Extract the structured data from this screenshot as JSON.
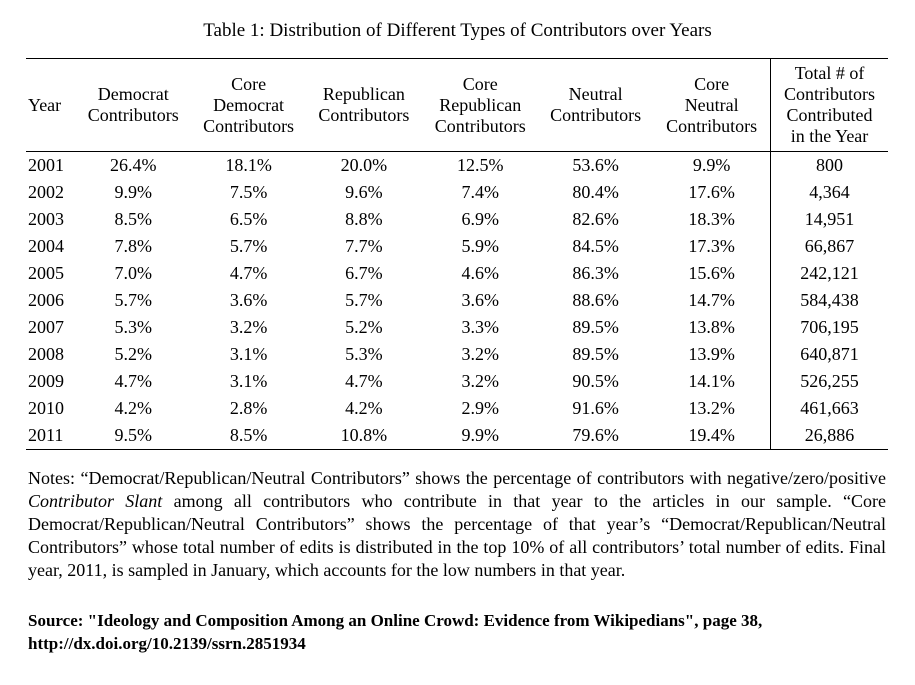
{
  "caption": "Table 1: Distribution of Different Types of Contributors over Years",
  "headers": {
    "year": "Year",
    "democrat": [
      "Democrat",
      "Contributors"
    ],
    "core_democrat": [
      "Core",
      "Democrat",
      "Contributors"
    ],
    "republican": [
      "Republican",
      "Contributors"
    ],
    "core_republican": [
      "Core",
      "Republican",
      "Contributors"
    ],
    "neutral": [
      "Neutral",
      "Contributors"
    ],
    "core_neutral": [
      "Core",
      "Neutral",
      "Contributors"
    ],
    "total": [
      "Total # of",
      "Contributors",
      "Contributed",
      "in the Year"
    ]
  },
  "rows": [
    [
      "2001",
      "26.4%",
      "18.1%",
      "20.0%",
      "12.5%",
      "53.6%",
      "9.9%",
      "800"
    ],
    [
      "2002",
      "9.9%",
      "7.5%",
      "9.6%",
      "7.4%",
      "80.4%",
      "17.6%",
      "4,364"
    ],
    [
      "2003",
      "8.5%",
      "6.5%",
      "8.8%",
      "6.9%",
      "82.6%",
      "18.3%",
      "14,951"
    ],
    [
      "2004",
      "7.8%",
      "5.7%",
      "7.7%",
      "5.9%",
      "84.5%",
      "17.3%",
      "66,867"
    ],
    [
      "2005",
      "7.0%",
      "4.7%",
      "6.7%",
      "4.6%",
      "86.3%",
      "15.6%",
      "242,121"
    ],
    [
      "2006",
      "5.7%",
      "3.6%",
      "5.7%",
      "3.6%",
      "88.6%",
      "14.7%",
      "584,438"
    ],
    [
      "2007",
      "5.3%",
      "3.2%",
      "5.2%",
      "3.3%",
      "89.5%",
      "13.8%",
      "706,195"
    ],
    [
      "2008",
      "5.2%",
      "3.1%",
      "5.3%",
      "3.2%",
      "89.5%",
      "13.9%",
      "640,871"
    ],
    [
      "2009",
      "4.7%",
      "3.1%",
      "4.7%",
      "3.2%",
      "90.5%",
      "14.1%",
      "526,255"
    ],
    [
      "2010",
      "4.2%",
      "2.8%",
      "4.2%",
      "2.9%",
      "91.6%",
      "13.2%",
      "461,663"
    ],
    [
      "2011",
      "9.5%",
      "8.5%",
      "10.8%",
      "9.9%",
      "79.6%",
      "19.4%",
      "26,886"
    ]
  ],
  "notes": {
    "part1": "Notes: “Democrat/Republican/Neutral Contributors” shows the percentage of contributors with negative/zero/positive ",
    "italic": "Contributor Slant",
    "part2": " among all contributors who contribute in that year to the articles in our sample. “Core Democrat/Republican/Neutral Contributors” shows the percentage of that year’s “Democrat/Republican/Neutral Contributors” whose total number of edits is distributed in the top 10% of all contributors’ total number of edits. Final year, 2011, is sampled in January, which accounts for the low numbers in that year."
  },
  "source": "Source: \"Ideology and Composition Among an Online Crowd: Evidence from Wikipedians\", page 38, http://dx.doi.org/10.2139/ssrn.2851934"
}
